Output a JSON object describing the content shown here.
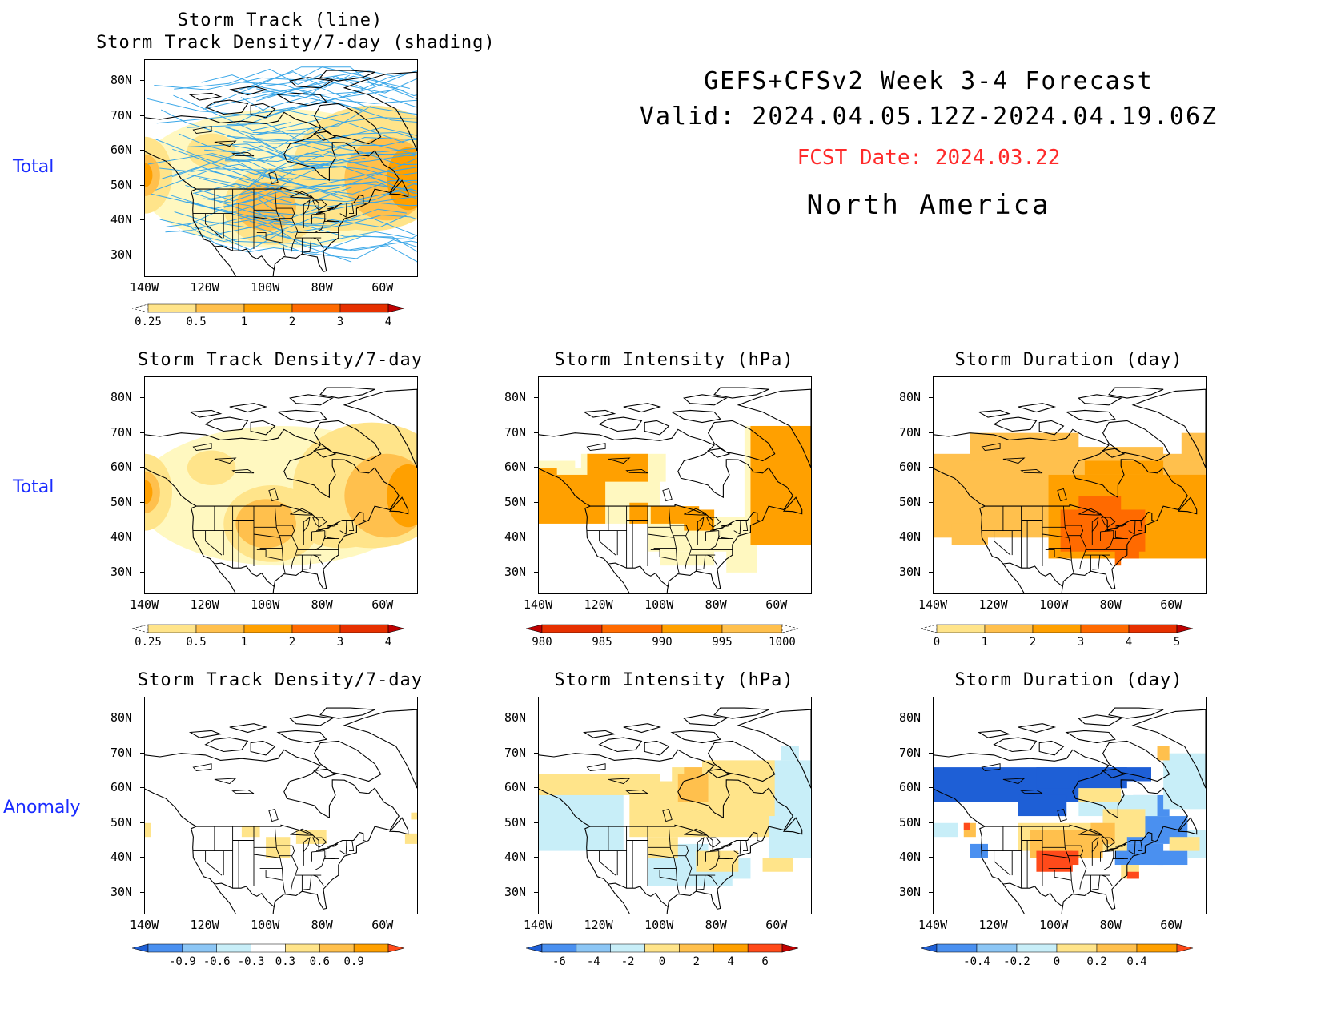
{
  "header": {
    "line1": "GEFS+CFSv2 Week 3-4 Forecast",
    "line2": "Valid: 2024.04.05.12Z-2024.04.19.06Z",
    "fcst_date": "FCST Date: 2024.03.22",
    "region": "North America",
    "fcst_color": "#ff2a2a"
  },
  "row_labels": [
    "Total",
    "Total",
    "Anomaly"
  ],
  "axes": {
    "lat_ticks": [
      "80N",
      "70N",
      "60N",
      "50N",
      "40N",
      "30N"
    ],
    "lon_ticks": [
      "140W",
      "120W",
      "100W",
      "80W",
      "60W"
    ]
  },
  "panels": {
    "p0": {
      "title": "Storm Track (line)\nStorm Track Density/7-day (shading)",
      "type": "track"
    },
    "p1": {
      "title": "Storm Track Density/7-day",
      "type": "density"
    },
    "p2": {
      "title": "Storm Intensity (hPa)",
      "type": "intensity"
    },
    "p3": {
      "title": "Storm Duration (day)",
      "type": "duration"
    },
    "p4": {
      "title": "Storm Track Density/7-day",
      "type": "density_anom"
    },
    "p5": {
      "title": "Storm Intensity (hPa)",
      "type": "intensity_anom"
    },
    "p6": {
      "title": "Storm Duration (day)",
      "type": "duration_anom"
    }
  },
  "colorbars": {
    "density": {
      "labels": [
        "0.25",
        "0.5",
        "1",
        "2",
        "3",
        "4"
      ],
      "colors": [
        "#fff8c0",
        "#ffe48a",
        "#ffc04d",
        "#ffa000",
        "#ff6a00",
        "#e63000",
        "#c00000"
      ],
      "left_dashed": true
    },
    "intensity": {
      "labels": [
        "980",
        "985",
        "990",
        "995",
        "1000"
      ],
      "colors": [
        "#c00000",
        "#e63000",
        "#ff6a00",
        "#ffa000",
        "#ffc04d",
        "#fff8c0"
      ],
      "right_dashed": true
    },
    "duration": {
      "labels": [
        "0",
        "1",
        "2",
        "3",
        "4",
        "5"
      ],
      "colors": [
        "#fff8c0",
        "#ffe48a",
        "#ffc04d",
        "#ffa000",
        "#ff6a00",
        "#e63000",
        "#c00000"
      ],
      "left_dashed": true
    },
    "density_anom": {
      "labels": [
        "-0.9",
        "-0.6",
        "-0.3",
        "0.3",
        "0.6",
        "0.9"
      ],
      "colors": [
        "#1e5fd6",
        "#4a90f0",
        "#8cc6f5",
        "#c8eef8",
        "#ffffff",
        "#ffe48a",
        "#ffc04d",
        "#ffa000",
        "#ff4a1a"
      ]
    },
    "intensity_anom": {
      "labels": [
        "-6",
        "-4",
        "-2",
        "0",
        "2",
        "4",
        "6"
      ],
      "colors": [
        "#1e5fd6",
        "#4a90f0",
        "#8cc6f5",
        "#c8eef8",
        "#ffe48a",
        "#ffc04d",
        "#ffa000",
        "#ff4a1a",
        "#c00000"
      ]
    },
    "duration_anom": {
      "labels": [
        "-0.4",
        "-0.2",
        "0",
        "0.2",
        "0.4"
      ],
      "colors": [
        "#1e5fd6",
        "#4a90f0",
        "#8cc6f5",
        "#c8eef8",
        "#ffe48a",
        "#ffc04d",
        "#ffa000",
        "#ff4a1a"
      ]
    }
  }
}
